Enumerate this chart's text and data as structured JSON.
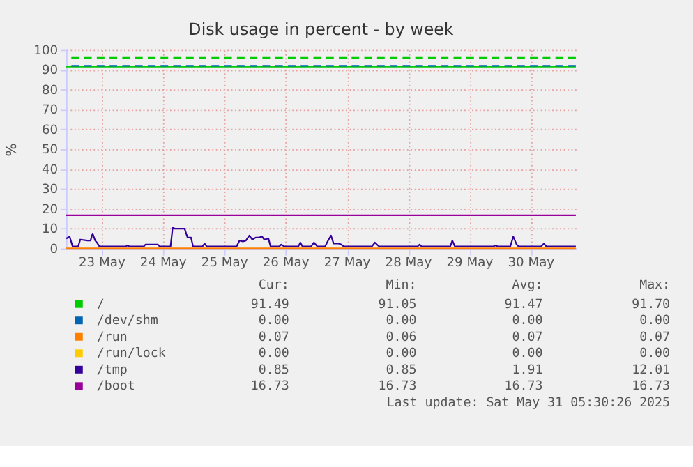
{
  "chart_data": {
    "type": "line",
    "title": "Disk usage in percent - by week",
    "ylabel": "%",
    "xlim": [
      "2025-05-22T22:00",
      "2025-05-31T05:30"
    ],
    "xticks": [
      {
        "value": "2025-05-23T12:00",
        "label": "23 May"
      },
      {
        "value": "2025-05-24T12:00",
        "label": "24 May"
      },
      {
        "value": "2025-05-25T12:00",
        "label": "25 May"
      },
      {
        "value": "2025-05-26T12:00",
        "label": "26 May"
      },
      {
        "value": "2025-05-27T12:00",
        "label": "27 May"
      },
      {
        "value": "2025-05-28T12:00",
        "label": "28 May"
      },
      {
        "value": "2025-05-29T12:00",
        "label": "29 May"
      },
      {
        "value": "2025-05-30T12:00",
        "label": "30 May"
      }
    ],
    "ylim": [
      0,
      100
    ],
    "yticks": [
      0,
      10,
      20,
      30,
      40,
      50,
      60,
      70,
      80,
      90,
      100
    ],
    "grid": true,
    "legend": "bottom",
    "line_style": "solid",
    "marker": "none",
    "series": [
      {
        "name": "/",
        "color": "#00cc00",
        "x": [
          "2025-05-22T22:00",
          "2025-05-31T05:30"
        ],
        "values": [
          91.5,
          91.5
        ]
      },
      {
        "name": "/dev/shm",
        "color": "#0066b3",
        "values": [
          null,
          null
        ]
      },
      {
        "name": "/run",
        "color": "#ff8000",
        "x": [
          "2025-05-22T22:00",
          "2025-05-31T05:30"
        ],
        "values": [
          0.1,
          0.1
        ]
      },
      {
        "name": "/run/lock",
        "color": "#ffcc00",
        "values": [
          null,
          null
        ]
      },
      {
        "name": "/tmp",
        "color": "#330099",
        "x": [
          "2025-05-22T22:00",
          "2025-05-22T23:20",
          "2025-05-23T00:30",
          "2025-05-23T02:40",
          "2025-05-23T03:30",
          "2025-05-23T06:20",
          "2025-05-23T07:30",
          "2025-05-23T08:20",
          "2025-05-23T09:20",
          "2025-05-23T10:00",
          "2025-05-23T11:00",
          "2025-05-23T21:20",
          "2025-05-23T21:50",
          "2025-05-23T23:00",
          "2025-05-24T04:20",
          "2025-05-24T05:00",
          "2025-05-24T09:50",
          "2025-05-24T10:40",
          "2025-05-24T14:50",
          "2025-05-24T15:40",
          "2025-05-24T16:30",
          "2025-05-24T20:20",
          "2025-05-24T21:30",
          "2025-05-24T22:50",
          "2025-05-24T23:40",
          "2025-05-25T03:20",
          "2025-05-25T04:10",
          "2025-05-25T05:00",
          "2025-05-25T06:10",
          "2025-05-25T07:00",
          "2025-05-25T16:40",
          "2025-05-25T17:50",
          "2025-05-25T19:10",
          "2025-05-25T20:20",
          "2025-05-25T21:40",
          "2025-05-25T22:50",
          "2025-05-26T00:10",
          "2025-05-26T01:20",
          "2025-05-26T02:40",
          "2025-05-26T03:30",
          "2025-05-26T05:10",
          "2025-05-26T06:00",
          "2025-05-26T09:20",
          "2025-05-26T10:10",
          "2025-05-26T11:20",
          "2025-05-26T12:20",
          "2025-05-26T16:50",
          "2025-05-26T17:40",
          "2025-05-26T18:30",
          "2025-05-26T21:50",
          "2025-05-26T23:00",
          "2025-05-27T00:20",
          "2025-05-27T03:20",
          "2025-05-27T04:30",
          "2025-05-27T05:40",
          "2025-05-27T06:40",
          "2025-05-27T08:40",
          "2025-05-27T09:40",
          "2025-05-27T10:40",
          "2025-05-27T21:40",
          "2025-05-27T22:50",
          "2025-05-28T00:30",
          "2025-05-28T01:20",
          "2025-05-28T04:40",
          "2025-05-28T05:10",
          "2025-05-28T05:50",
          "2025-05-28T15:30",
          "2025-05-28T16:20",
          "2025-05-28T17:10",
          "2025-05-29T04:20",
          "2025-05-29T05:10",
          "2025-05-29T06:10",
          "2025-05-29T21:10",
          "2025-05-29T22:00",
          "2025-05-29T23:10",
          "2025-05-30T03:50",
          "2025-05-30T05:00",
          "2025-05-30T06:20",
          "2025-05-30T07:10",
          "2025-05-30T15:50",
          "2025-05-30T17:00",
          "2025-05-30T18:00",
          "2025-05-31T05:30"
        ],
        "values": [
          5,
          6,
          1,
          1,
          4.5,
          4,
          4,
          7.5,
          4,
          3,
          1,
          1,
          1.5,
          1,
          1,
          2,
          2,
          1,
          1,
          10.5,
          10,
          10,
          5.5,
          5.5,
          1,
          1,
          2.5,
          1,
          1,
          1,
          1,
          4,
          3.5,
          4,
          6.5,
          4.5,
          5.5,
          5.5,
          6,
          4.5,
          5,
          1,
          1,
          2,
          1,
          1,
          1,
          3,
          1,
          1,
          3,
          1,
          1,
          4,
          6.5,
          2.5,
          2.5,
          2,
          1,
          1,
          3,
          1,
          1,
          1,
          1,
          1,
          1,
          2,
          1,
          1,
          4,
          1,
          1,
          1.5,
          1,
          1,
          6,
          2,
          1,
          1,
          2.5,
          1,
          1
        ]
      },
      {
        "name": "/boot",
        "color": "#990099",
        "x": [
          "2025-05-22T22:00",
          "2025-05-31T05:30"
        ],
        "values": [
          16.7,
          16.7
        ]
      }
    ],
    "ref_lines": [
      {
        "axis": "y",
        "value": 96,
        "label": null,
        "color": "#00cc00",
        "line_style": "dashed"
      },
      {
        "axis": "y",
        "value": 92,
        "label": null,
        "color": "#0066b3",
        "line_style": "dashed"
      }
    ],
    "annotations": [
      "Cur:",
      "Min:",
      "Avg:",
      "Max:",
      "91.49",
      "91.05",
      "91.47",
      "91.70",
      "0.00",
      "0.00",
      "0.00",
      "0.00",
      "0.07",
      "0.06",
      "0.07",
      "0.07",
      "0.00",
      "0.00",
      "0.00",
      "0.00",
      "0.85",
      "0.85",
      "1.91",
      "12.01",
      "16.73",
      "16.73",
      "16.73",
      "16.73",
      "Last update: Sat May 31 05:30:26 2025"
    ]
  }
}
